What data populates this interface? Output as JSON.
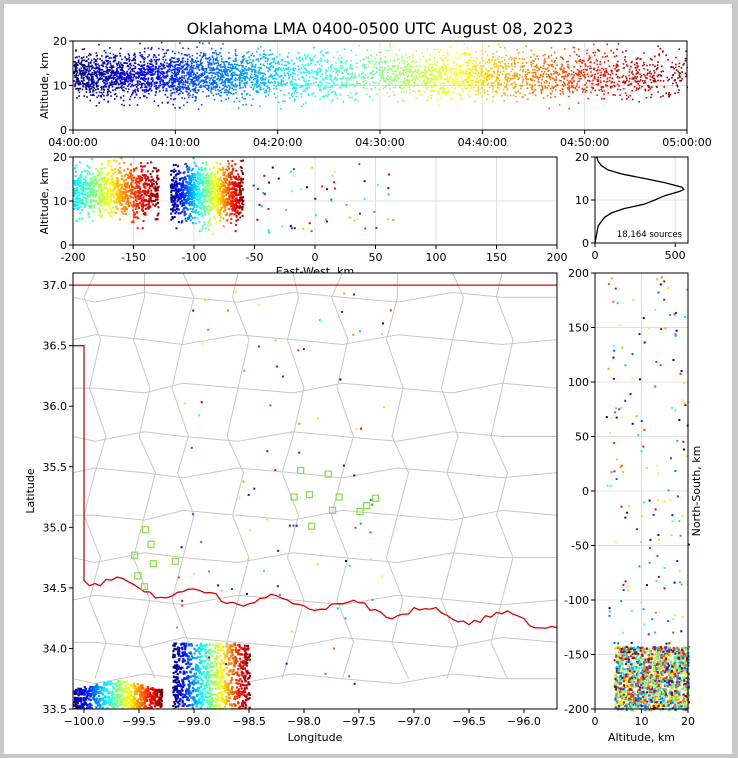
{
  "figure": {
    "title": "Oklahoma LMA 0400-0500 UTC August 08, 2023"
  },
  "chart_data": [
    {
      "id": "time_height",
      "type": "scatter",
      "ylabel": "Altitude, km",
      "xlim": [
        "04:00:00",
        "05:00:00"
      ],
      "ylim": [
        0,
        20
      ],
      "xticks": [
        "04:00:00",
        "04:10:00",
        "04:20:00",
        "04:30:00",
        "04:40:00",
        "04:50:00",
        "05:00:00"
      ],
      "yticks": [
        0,
        10,
        20
      ],
      "grid": true,
      "color_by": "time",
      "colormap": [
        "#00008f",
        "#0000ff",
        "#00ffff",
        "#7fff7f",
        "#ffff00",
        "#ff7f00",
        "#ff0000",
        "#800000"
      ],
      "density_by_minute": [
        9,
        9,
        9,
        9,
        9,
        8,
        8,
        8,
        8,
        9,
        9,
        9,
        8,
        8,
        8,
        8,
        7,
        6,
        6,
        5,
        4,
        4,
        4,
        3,
        4,
        4,
        4,
        3,
        3,
        3,
        4,
        4,
        5,
        4,
        5,
        5,
        5,
        4,
        5,
        5,
        5,
        4,
        4,
        4,
        4,
        4,
        4,
        4,
        4,
        4,
        4,
        4,
        3,
        3,
        3,
        3,
        3,
        2,
        2,
        2
      ],
      "altitude_center_km": 12.5
    },
    {
      "id": "ew_height",
      "type": "scatter",
      "xlabel": "East-West, km",
      "ylabel": "Altitude, km",
      "xlim": [
        -200,
        200
      ],
      "ylim": [
        0,
        20
      ],
      "xticks": [
        -200,
        -150,
        -100,
        -50,
        0,
        50,
        100,
        150,
        200
      ],
      "yticks": [
        0,
        10,
        20
      ],
      "grid": true,
      "clusters_east_west_km": [
        {
          "x_range": [
            -200,
            -130
          ],
          "alt_range": [
            4,
            20
          ]
        },
        {
          "x_range": [
            -120,
            -60
          ],
          "alt_range": [
            3,
            20
          ]
        }
      ]
    },
    {
      "id": "altitude_histogram",
      "type": "line",
      "xlim": [
        0,
        580
      ],
      "ylim": [
        0,
        20
      ],
      "xticks": [
        0,
        500
      ],
      "yticks": [
        0,
        10,
        20
      ],
      "annotation": "18,164 sources",
      "profile": [
        {
          "alt": 0,
          "count": 0
        },
        {
          "alt": 2,
          "count": 10
        },
        {
          "alt": 4,
          "count": 20
        },
        {
          "alt": 5,
          "count": 40
        },
        {
          "alt": 6,
          "count": 60
        },
        {
          "alt": 7,
          "count": 110
        },
        {
          "alt": 8,
          "count": 180
        },
        {
          "alt": 9,
          "count": 300
        },
        {
          "alt": 10,
          "count": 380
        },
        {
          "alt": 11,
          "count": 430
        },
        {
          "alt": 12,
          "count": 520
        },
        {
          "alt": 12.5,
          "count": 560
        },
        {
          "alt": 13,
          "count": 540
        },
        {
          "alt": 14,
          "count": 430
        },
        {
          "alt": 15,
          "count": 300
        },
        {
          "alt": 16,
          "count": 180
        },
        {
          "alt": 17,
          "count": 80
        },
        {
          "alt": 18,
          "count": 40
        },
        {
          "alt": 19,
          "count": 20
        },
        {
          "alt": 20,
          "count": 10
        }
      ]
    },
    {
      "id": "plan_view",
      "type": "scatter",
      "xlabel": "Longitude",
      "ylabel": "Latitude",
      "xlim": [
        -100.1,
        -95.7
      ],
      "ylim": [
        33.5,
        37.1
      ],
      "xticks": [
        -100.0,
        -99.5,
        -99.0,
        -98.5,
        -98.0,
        -97.5,
        -97.0,
        -96.5,
        -96.0
      ],
      "yticks": [
        33.5,
        34.0,
        34.5,
        35.0,
        35.5,
        36.0,
        36.5,
        37.0
      ],
      "xtick_labels": [
        "−100.0",
        "−99.5",
        "−99.0",
        "−98.5",
        "−98.0",
        "−97.5",
        "−97.0",
        "−96.5",
        "−96.0"
      ],
      "ytick_labels": [
        "33.5",
        "34.0",
        "34.5",
        "35.0",
        "35.5",
        "36.0",
        "36.5",
        "37.0"
      ],
      "stations": [
        [
          -98.03,
          35.47
        ],
        [
          -97.78,
          35.44
        ],
        [
          -97.95,
          35.27
        ],
        [
          -98.09,
          35.25
        ],
        [
          -97.68,
          35.25
        ],
        [
          -97.35,
          35.24
        ],
        [
          -97.43,
          35.18
        ],
        [
          -97.49,
          35.13
        ],
        [
          -97.74,
          35.14
        ],
        [
          -97.93,
          35.01
        ],
        [
          -99.44,
          34.98
        ],
        [
          -99.39,
          34.86
        ],
        [
          -99.54,
          34.77
        ],
        [
          -99.37,
          34.7
        ],
        [
          -99.17,
          34.72
        ],
        [
          -99.51,
          34.6
        ],
        [
          -99.45,
          34.51
        ]
      ],
      "storm_clusters": [
        {
          "lon_range": [
            -100.1,
            -99.3
          ],
          "lat_range": [
            33.5,
            33.75
          ]
        },
        {
          "lon_range": [
            -99.2,
            -98.5
          ],
          "lat_range": [
            33.5,
            34.05
          ]
        }
      ]
    },
    {
      "id": "ns_height",
      "type": "scatter",
      "xlabel": "Altitude, km",
      "ylabel": "North-South, km",
      "xlim": [
        0,
        20
      ],
      "ylim": [
        -200,
        200
      ],
      "xticks": [
        0,
        10,
        20
      ],
      "yticks": [
        -200,
        -150,
        -100,
        -50,
        0,
        50,
        100,
        150,
        200
      ],
      "grid": true
    }
  ]
}
